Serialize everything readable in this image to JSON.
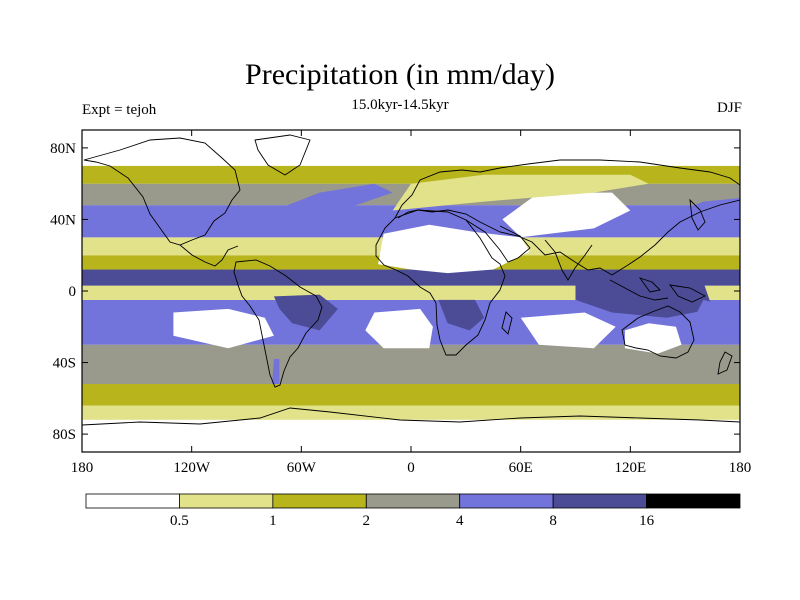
{
  "title": "Precipitation (in mm/day)",
  "subtitle": "15.0kyr-14.5kyr",
  "left_label": "Expt = tejoh",
  "right_label": "DJF",
  "colors": {
    "c0": "#ffffff",
    "c1": "#e2e28a",
    "c2": "#b7b41c",
    "c3": "#9a9a8c",
    "c4": "#7373dc",
    "c5": "#4c4c96",
    "c6": "#000000",
    "coast": "#000000"
  },
  "chart_data": {
    "type": "heatmap",
    "projection": "cylindrical-equidistant",
    "variable": "Precipitation",
    "units": "mm/day",
    "title": "Precipitation (in mm/day)",
    "subtitle": "15.0kyr-14.5kyr",
    "experiment": "Expt = tejoh",
    "season": "DJF",
    "lon_range": [
      -180,
      180
    ],
    "lat_range": [
      -90,
      90
    ],
    "x_ticks": [
      {
        "value": -180,
        "label": "180"
      },
      {
        "value": -120,
        "label": "120W"
      },
      {
        "value": -60,
        "label": "60W"
      },
      {
        "value": 0,
        "label": "0"
      },
      {
        "value": 60,
        "label": "60E"
      },
      {
        "value": 120,
        "label": "120E"
      },
      {
        "value": 180,
        "label": "180"
      }
    ],
    "y_ticks": [
      {
        "value": 80,
        "label": "80N"
      },
      {
        "value": 40,
        "label": "40N"
      },
      {
        "value": 0,
        "label": "0"
      },
      {
        "value": -40,
        "label": "40S"
      },
      {
        "value": -80,
        "label": "80S"
      }
    ],
    "levels": [
      0.5,
      1,
      2,
      4,
      8,
      16
    ],
    "colorbar_labels": [
      "0.5",
      "1",
      "2",
      "4",
      "8",
      "16"
    ],
    "zonal_bands": [
      {
        "lat_min": -90,
        "lat_max": -72,
        "class": 0
      },
      {
        "lat_min": -72,
        "lat_max": -64,
        "class": 1
      },
      {
        "lat_min": -64,
        "lat_max": -52,
        "class": 2
      },
      {
        "lat_min": -52,
        "lat_max": -30,
        "class": 3
      },
      {
        "lat_min": -30,
        "lat_max": -5,
        "class": 4
      },
      {
        "lat_min": -5,
        "lat_max": 3,
        "class": 1
      },
      {
        "lat_min": 3,
        "lat_max": 12,
        "class": 5
      },
      {
        "lat_min": 12,
        "lat_max": 20,
        "class": 2
      },
      {
        "lat_min": 20,
        "lat_max": 30,
        "class": 1
      },
      {
        "lat_min": 30,
        "lat_max": 48,
        "class": 4
      },
      {
        "lat_min": 48,
        "lat_max": 60,
        "class": 3
      },
      {
        "lat_min": 60,
        "lat_max": 70,
        "class": 2
      },
      {
        "lat_min": 70,
        "lat_max": 90,
        "class": 0
      }
    ],
    "regions": [
      {
        "name": "north-atlantic-storm-track",
        "class": 4,
        "polygon": [
          [
            -80,
            35
          ],
          [
            -60,
            40
          ],
          [
            -30,
            48
          ],
          [
            -10,
            55
          ],
          [
            -20,
            60
          ],
          [
            -50,
            55
          ],
          [
            -75,
            45
          ]
        ]
      },
      {
        "name": "north-pacific-storm-track",
        "class": 4,
        "polygon": [
          [
            140,
            35
          ],
          [
            170,
            40
          ],
          [
            180,
            45
          ],
          [
            180,
            52
          ],
          [
            160,
            50
          ],
          [
            140,
            42
          ]
        ]
      },
      {
        "name": "sahara-arabia-dry",
        "class": 0,
        "polygon": [
          [
            -18,
            15
          ],
          [
            -15,
            32
          ],
          [
            10,
            37
          ],
          [
            35,
            33
          ],
          [
            60,
            30
          ],
          [
            65,
            22
          ],
          [
            45,
            12
          ],
          [
            20,
            10
          ],
          [
            0,
            12
          ]
        ]
      },
      {
        "name": "central-asia-dry",
        "class": 0,
        "polygon": [
          [
            60,
            30
          ],
          [
            100,
            35
          ],
          [
            120,
            45
          ],
          [
            110,
            55
          ],
          [
            70,
            55
          ],
          [
            50,
            40
          ]
        ]
      },
      {
        "name": "eurasia-moderate",
        "class": 1,
        "polygon": [
          [
            -10,
            45
          ],
          [
            40,
            50
          ],
          [
            100,
            55
          ],
          [
            130,
            60
          ],
          [
            120,
            65
          ],
          [
            40,
            65
          ],
          [
            0,
            60
          ]
        ]
      },
      {
        "name": "se-pacific-dry",
        "class": 0,
        "polygon": [
          [
            -130,
            -12
          ],
          [
            -100,
            -10
          ],
          [
            -80,
            -15
          ],
          [
            -75,
            -25
          ],
          [
            -100,
            -32
          ],
          [
            -130,
            -25
          ]
        ]
      },
      {
        "name": "se-atlantic-dry",
        "class": 0,
        "polygon": [
          [
            -20,
            -12
          ],
          [
            5,
            -10
          ],
          [
            12,
            -20
          ],
          [
            10,
            -32
          ],
          [
            -15,
            -32
          ],
          [
            -25,
            -22
          ]
        ]
      },
      {
        "name": "se-indian-dry",
        "class": 0,
        "polygon": [
          [
            60,
            -15
          ],
          [
            95,
            -12
          ],
          [
            112,
            -20
          ],
          [
            100,
            -32
          ],
          [
            70,
            -30
          ]
        ]
      },
      {
        "name": "australia-dry",
        "class": 0,
        "polygon": [
          [
            117,
            -22
          ],
          [
            130,
            -18
          ],
          [
            145,
            -20
          ],
          [
            148,
            -30
          ],
          [
            135,
            -35
          ],
          [
            117,
            -32
          ]
        ]
      },
      {
        "name": "amazon-wet",
        "class": 5,
        "polygon": [
          [
            -75,
            -3
          ],
          [
            -50,
            -2
          ],
          [
            -40,
            -10
          ],
          [
            -50,
            -22
          ],
          [
            -65,
            -18
          ],
          [
            -72,
            -10
          ]
        ]
      },
      {
        "name": "africa-south-wet",
        "class": 5,
        "polygon": [
          [
            15,
            -5
          ],
          [
            35,
            -5
          ],
          [
            40,
            -15
          ],
          [
            32,
            -22
          ],
          [
            20,
            -18
          ]
        ]
      },
      {
        "name": "maritime-continent-wet",
        "class": 5,
        "polygon": [
          [
            90,
            5
          ],
          [
            130,
            8
          ],
          [
            160,
            5
          ],
          [
            165,
            -10
          ],
          [
            140,
            -15
          ],
          [
            110,
            -12
          ],
          [
            90,
            -5
          ]
        ]
      },
      {
        "name": "spcz-wet",
        "class": 4,
        "polygon": [
          [
            160,
            -5
          ],
          [
            180,
            -10
          ],
          [
            180,
            -25
          ],
          [
            165,
            -25
          ],
          [
            155,
            -15
          ]
        ]
      },
      {
        "name": "patagonia-wet",
        "class": 4,
        "polygon": [
          [
            -75,
            -38
          ],
          [
            -72,
            -38
          ],
          [
            -72,
            -52
          ],
          [
            -76,
            -52
          ]
        ]
      }
    ]
  }
}
